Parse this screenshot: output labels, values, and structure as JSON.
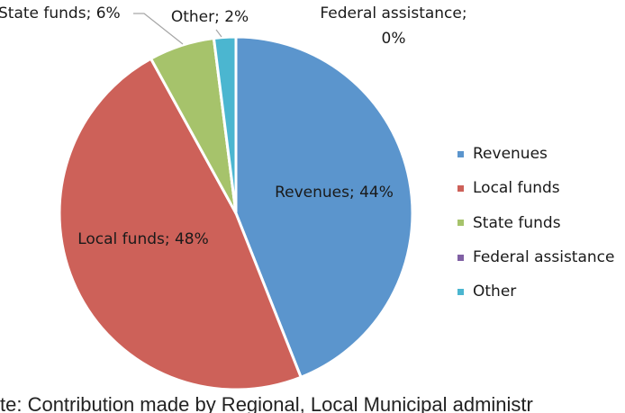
{
  "chart_data": {
    "type": "pie",
    "title": "",
    "slices": [
      {
        "name": "Revenues",
        "value": 44,
        "label": "Revenues; 44%",
        "color": "#5b95cd"
      },
      {
        "name": "Local funds",
        "value": 48,
        "label": "Local funds; 48%",
        "color": "#cd6159"
      },
      {
        "name": "State funds",
        "value": 6,
        "label": "State funds; 6%",
        "color": "#a6c36b"
      },
      {
        "name": "Federal assistance",
        "value": 0,
        "label_lines": [
          "Federal assistance;",
          "0%"
        ],
        "color": "#8060a4"
      },
      {
        "name": "Other",
        "value": 2,
        "label": "Other; 2%",
        "color": "#4bb6d0"
      }
    ],
    "legend": {
      "placement": "right",
      "entries": [
        "Revenues",
        "Local funds",
        "State funds",
        "Federal assistance",
        "Other"
      ]
    }
  },
  "caption": "te: Contribution made by Regional, Local Municipal administr"
}
